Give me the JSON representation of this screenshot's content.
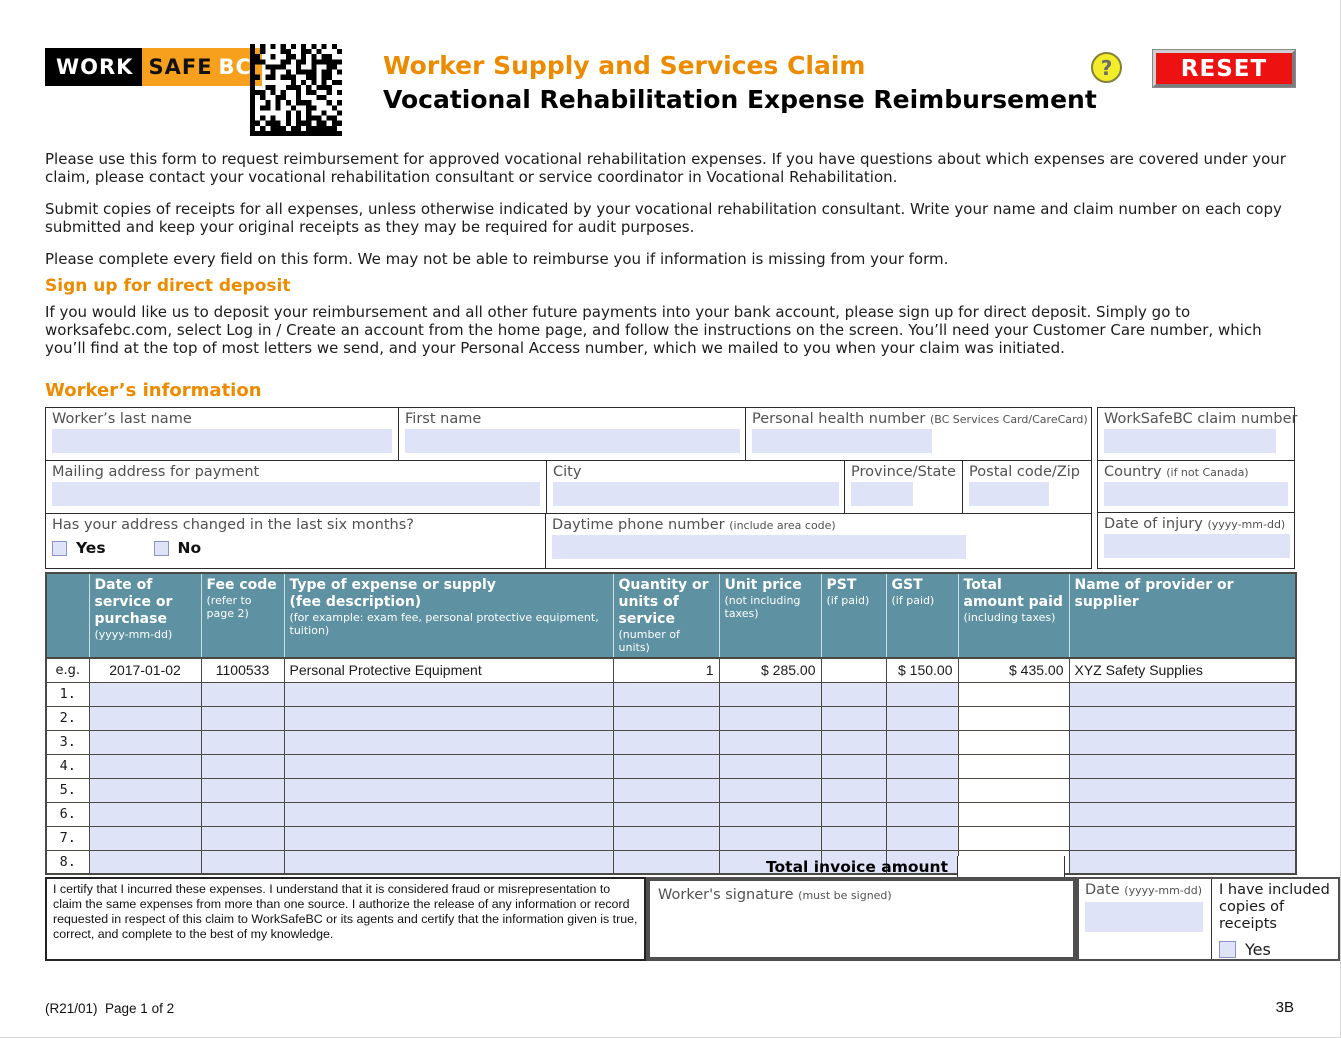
{
  "header": {
    "logo": {
      "work": "WORK",
      "safe": "SAFE",
      "bc": "BC"
    },
    "title_line1": "Worker Supply and Services Claim",
    "title_line2": "Vocational Rehabilitation Expense Reimbursement",
    "help_label": "?",
    "reset_label": "RESET"
  },
  "intro": {
    "p1": "Please use this form to request reimbursement for approved vocational rehabilitation expenses. If you have questions about which expenses are covered under your claim, please contact your vocational rehabilitation consultant or service coordinator in Vocational Rehabilitation.",
    "p2": "Submit copies of receipts for all expenses, unless otherwise indicated by your vocational rehabilitation consultant. Write your name and claim number on each copy submitted and keep your original receipts as they may be required for audit purposes.",
    "p3": "Please complete every field on this form. We may not be able to reimburse you if information is missing from your form."
  },
  "direct_deposit": {
    "heading": "Sign up for direct deposit",
    "body": "If you would like us to deposit your reimbursement and all other future payments into your bank account, please sign up for direct deposit. Simply go to worksafebc.com, select Log in / Create an account from the home page, and follow the instructions on the screen. You’ll need your Customer Care number, which you’ll find at the top of most letters we send, and your Personal Access number, which we mailed to you when your claim was initiated."
  },
  "worker_info": {
    "heading": "Worker’s information",
    "last_name_label": "Worker’s last name",
    "first_name_label": "First name",
    "phn_label": "Personal health number",
    "phn_hint": "(BC Services Card/CareCard)",
    "claim_label": "WorkSafeBC claim number",
    "mailing_label": "Mailing address for payment",
    "city_label": "City",
    "province_label": "Province/State",
    "postal_label": "Postal code/Zip",
    "country_label": "Country",
    "country_hint": "(if not Canada)",
    "address_changed_label": "Has your address changed in the last six months?",
    "yes_label": "Yes",
    "no_label": "No",
    "phone_label": "Daytime phone number",
    "phone_hint": "(include area code)",
    "injury_label": "Date of injury",
    "injury_hint": "(yyyy-mm-dd)"
  },
  "expense_table": {
    "columns": {
      "date": {
        "label": "Date of service or purchase",
        "hint": "(yyyy-mm-dd)"
      },
      "fee": {
        "label": "Fee code",
        "hint": "(refer to page 2)"
      },
      "type": {
        "label": "Type of expense or supply",
        "label2": "(fee description)",
        "hint": "(for example: exam fee, personal protective equipment, tuition)"
      },
      "qty": {
        "label": "Quantity or units of service",
        "hint": "(number of units)"
      },
      "unit": {
        "label": "Unit price",
        "hint": "(not including taxes)"
      },
      "pst": {
        "label": "PST",
        "hint": "(if paid)"
      },
      "gst": {
        "label": "GST",
        "hint": "(if paid)"
      },
      "total": {
        "label": "Total amount paid",
        "hint": "(including taxes)"
      },
      "provider": {
        "label": "Name of provider or supplier"
      }
    },
    "example_row": {
      "tag": "e.g.",
      "date": "2017-01-02",
      "fee": "1100533",
      "type": "Personal Protective Equipment",
      "qty": "1",
      "unit": "$ 285.00",
      "pst": "",
      "gst": "$ 150.00",
      "total": "$ 435.00",
      "provider": "XYZ Safety Supplies"
    },
    "row_numbers": [
      "1.",
      "2.",
      "3.",
      "4.",
      "5.",
      "6.",
      "7.",
      "8."
    ],
    "total_invoice_label": "Total invoice amount"
  },
  "certification": {
    "text": "I certify that I incurred these expenses. I understand that it is considered fraud or misrepresentation to claim the same expenses from more than one source. I authorize the release of any information or record requested in respect of this claim to WorkSafeBC or its agents and certify that the information given is true, correct, and complete to the best of my knowledge.",
    "signature_label": "Worker's signature",
    "signature_hint": "(must be signed)",
    "date_label": "Date",
    "date_hint": "(yyyy-mm-dd)",
    "receipts_label": "I have included copies of receipts",
    "receipts_yes_label": "Yes"
  },
  "footer": {
    "left": "(R21/01)  Page 1 of 2",
    "right": "3B"
  },
  "colors": {
    "accent_orange": "#ED8B00",
    "logo_orange": "#F7A01E",
    "table_header_teal": "#5E91A2",
    "field_lavender": "#DEE3F8",
    "reset_red": "#EE1111",
    "help_yellow": "#F3EC2B"
  }
}
